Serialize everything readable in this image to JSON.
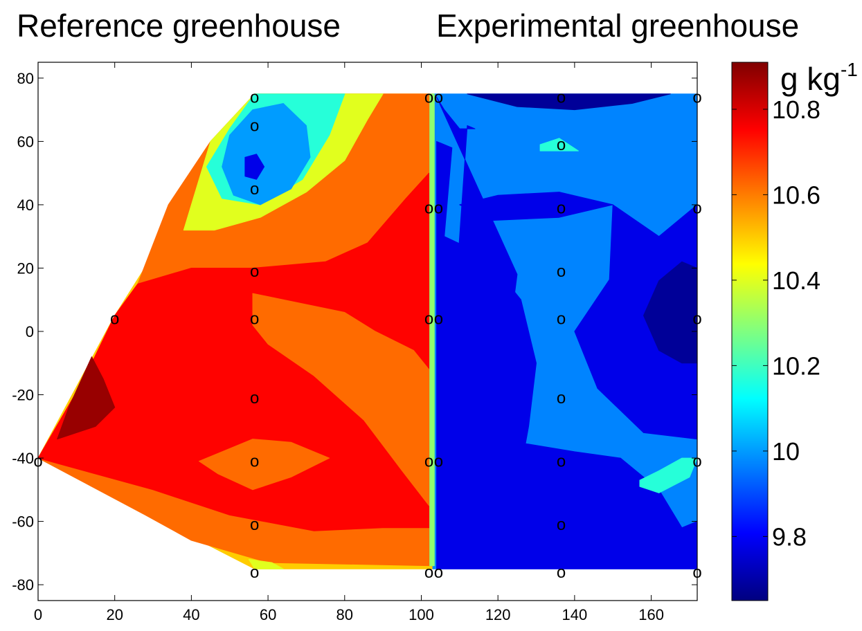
{
  "chart_data": {
    "type": "heatmap",
    "titles": {
      "left": "Reference greenhouse",
      "right": "Experimental greenhouse"
    },
    "xlim": [
      0,
      172
    ],
    "ylim": [
      -85,
      85
    ],
    "x_ticks": [
      0,
      20,
      40,
      60,
      80,
      100,
      120,
      140,
      160
    ],
    "y_ticks": [
      80,
      60,
      40,
      20,
      0,
      -20,
      -40,
      -60,
      -80
    ],
    "colorbar": {
      "label": "g kg",
      "label_superscript": "-1",
      "range": [
        9.65,
        10.91
      ],
      "ticks": [
        10.8,
        10.6,
        10.4,
        10.2,
        10,
        9.8
      ],
      "tick_labels": [
        "10.8",
        "10.6",
        "10.4",
        "10.2",
        "10",
        "9.8"
      ],
      "colormap": "jet"
    },
    "domains": {
      "reference_outline": [
        [
          56.5,
          75
        ],
        [
          102,
          75
        ],
        [
          102,
          -75
        ],
        [
          56.5,
          -75
        ],
        [
          0,
          -40
        ],
        [
          20,
          5
        ]
      ],
      "experimental_outline": [
        [
          102,
          75
        ],
        [
          172,
          75
        ],
        [
          172,
          -75
        ],
        [
          102,
          -75
        ]
      ]
    },
    "regions": [
      {
        "name": "ref-base",
        "value": 10.5,
        "points": [
          [
            56.5,
            75
          ],
          [
            103,
            75
          ],
          [
            103,
            -75
          ],
          [
            56.5,
            -75
          ],
          [
            0,
            -40
          ],
          [
            20,
            5
          ]
        ]
      },
      {
        "name": "ref-orange-top",
        "value": 10.62,
        "points": [
          [
            34,
            40
          ],
          [
            45,
            60
          ],
          [
            56.5,
            75
          ],
          [
            103,
            75
          ],
          [
            103,
            -74
          ],
          [
            60,
            -73
          ],
          [
            40,
            -66
          ],
          [
            28,
            -58
          ],
          [
            0,
            -40
          ],
          [
            12,
            -15
          ],
          [
            20,
            5
          ],
          [
            26,
            15
          ]
        ]
      },
      {
        "name": "ref-red",
        "value": 10.75,
        "points": [
          [
            26,
            15
          ],
          [
            40,
            20
          ],
          [
            56,
            20
          ],
          [
            75,
            22
          ],
          [
            86,
            28
          ],
          [
            96,
            42
          ],
          [
            102,
            50
          ],
          [
            102,
            -62
          ],
          [
            90,
            -62
          ],
          [
            72,
            -63
          ],
          [
            50,
            -58
          ],
          [
            30,
            -50
          ],
          [
            0,
            -40
          ],
          [
            12,
            -15
          ],
          [
            20,
            5
          ]
        ]
      },
      {
        "name": "ref-orange-mid",
        "value": 10.62,
        "points": [
          [
            56,
            12
          ],
          [
            64,
            10
          ],
          [
            80,
            6
          ],
          [
            88,
            0
          ],
          [
            98,
            -6
          ],
          [
            102,
            -12
          ],
          [
            102,
            -55
          ],
          [
            95,
            -44
          ],
          [
            85,
            -28
          ],
          [
            72,
            -14
          ],
          [
            60,
            -4
          ],
          [
            56,
            2
          ]
        ]
      },
      {
        "name": "ref-orange-oval",
        "value": 10.62,
        "points": [
          [
            42,
            -41
          ],
          [
            56,
            -34
          ],
          [
            66,
            -35
          ],
          [
            76,
            -40
          ],
          [
            66,
            -46
          ],
          [
            56,
            -50
          ],
          [
            47,
            -45
          ]
        ]
      },
      {
        "name": "ref-darkred-corner",
        "value": 10.88,
        "points": [
          [
            14,
            -8
          ],
          [
            17,
            -15
          ],
          [
            20,
            -24
          ],
          [
            15,
            -30
          ],
          [
            5,
            -34
          ],
          [
            8,
            -24
          ]
        ]
      },
      {
        "name": "ref-yellow-top",
        "value": 10.4,
        "points": [
          [
            45,
            60
          ],
          [
            56.5,
            75
          ],
          [
            90,
            75
          ],
          [
            86,
            67
          ],
          [
            80,
            54
          ],
          [
            70,
            44
          ],
          [
            58,
            36
          ],
          [
            46,
            32
          ],
          [
            38,
            32
          ]
        ]
      },
      {
        "name": "ref-cyan-top",
        "value": 10.17,
        "points": [
          [
            50,
            64
          ],
          [
            56.5,
            75
          ],
          [
            80,
            75
          ],
          [
            76,
            62
          ],
          [
            69,
            48
          ],
          [
            58,
            40
          ],
          [
            48,
            42
          ],
          [
            44,
            52
          ]
        ]
      },
      {
        "name": "ref-blue-top",
        "value": 10.0,
        "points": [
          [
            50,
            62
          ],
          [
            56,
            70
          ],
          [
            64,
            72
          ],
          [
            70,
            65
          ],
          [
            71,
            55
          ],
          [
            66,
            45
          ],
          [
            58,
            40
          ],
          [
            51,
            43
          ],
          [
            48,
            52
          ]
        ]
      },
      {
        "name": "ref-navy-spot",
        "value": 9.78,
        "points": [
          [
            54,
            55
          ],
          [
            57,
            56
          ],
          [
            59,
            52
          ],
          [
            57,
            48
          ],
          [
            54,
            49
          ]
        ]
      },
      {
        "name": "ref-yellow-bottom",
        "value": 10.4,
        "points": [
          [
            56.5,
            -75
          ],
          [
            64,
            -75
          ],
          [
            61,
            -73
          ],
          [
            55,
            -72
          ]
        ]
      },
      {
        "name": "exp-base",
        "value": 9.97,
        "points": [
          [
            103,
            75
          ],
          [
            172,
            75
          ],
          [
            172,
            -75
          ],
          [
            103,
            -75
          ]
        ]
      },
      {
        "name": "exp-navy-top",
        "value": 9.68,
        "points": [
          [
            112,
            75
          ],
          [
            165,
            75
          ],
          [
            155,
            72
          ],
          [
            140,
            70
          ],
          [
            125,
            71
          ]
        ]
      },
      {
        "name": "exp-cyan-spot",
        "value": 10.17,
        "points": [
          [
            131,
            59
          ],
          [
            136,
            61
          ],
          [
            141,
            57
          ],
          [
            131,
            57
          ]
        ]
      },
      {
        "name": "exp-blue-40",
        "value": 9.78,
        "points": [
          [
            110,
            40
          ],
          [
            120,
            43
          ],
          [
            136,
            44
          ],
          [
            150,
            40
          ],
          [
            136,
            36
          ],
          [
            118,
            35
          ]
        ]
      },
      {
        "name": "exp-blue-main",
        "value": 9.78,
        "points": [
          [
            104,
            74
          ],
          [
            106,
            70
          ],
          [
            110,
            64
          ],
          [
            114,
            64
          ],
          [
            112,
            65
          ],
          [
            104,
            -75
          ],
          [
            172,
            -75
          ],
          [
            172,
            -34
          ],
          [
            158,
            -32
          ],
          [
            146,
            -18
          ],
          [
            140,
            0
          ],
          [
            150,
            18
          ],
          [
            162,
            30
          ],
          [
            172,
            40
          ],
          [
            172,
            -60
          ],
          [
            168,
            -62
          ],
          [
            162,
            -50
          ],
          [
            152,
            -40
          ],
          [
            140,
            -38
          ],
          [
            125,
            -35
          ],
          [
            122,
            -10
          ],
          [
            125,
            18
          ]
        ]
      },
      {
        "name": "exp-blue-left-strip",
        "value": 9.78,
        "points": [
          [
            104,
            60
          ],
          [
            108,
            58
          ],
          [
            106,
            30
          ],
          [
            113,
            26
          ],
          [
            118,
            22
          ],
          [
            126,
            10
          ],
          [
            130,
            -10
          ],
          [
            128,
            -30
          ],
          [
            125,
            -50
          ],
          [
            126,
            -60
          ],
          [
            120,
            -74
          ],
          [
            104,
            -75
          ]
        ]
      },
      {
        "name": "exp-blue-right",
        "value": 9.78,
        "points": [
          [
            150,
            40
          ],
          [
            162,
            30
          ],
          [
            172,
            38
          ],
          [
            172,
            -22
          ],
          [
            162,
            -20
          ],
          [
            152,
            -12
          ],
          [
            147,
            0
          ],
          [
            149,
            14
          ]
        ]
      },
      {
        "name": "exp-navy-right",
        "value": 9.68,
        "points": [
          [
            158,
            5
          ],
          [
            162,
            16
          ],
          [
            168,
            22
          ],
          [
            172,
            20
          ],
          [
            172,
            -10
          ],
          [
            168,
            -10
          ],
          [
            162,
            -6
          ]
        ]
      },
      {
        "name": "exp-cyan-right",
        "value": 10.17,
        "points": [
          [
            157,
            -47
          ],
          [
            162,
            -44
          ],
          [
            168,
            -40
          ],
          [
            172,
            -40
          ],
          [
            170,
            -46
          ],
          [
            162,
            -51
          ],
          [
            157,
            -49
          ]
        ]
      },
      {
        "name": "interface-strip",
        "value": 10.3,
        "points": [
          [
            102.2,
            75
          ],
          [
            103.4,
            75
          ],
          [
            103.4,
            -74
          ],
          [
            102.2,
            -74
          ]
        ]
      }
    ],
    "measurement_points": [
      [
        56.5,
        74
      ],
      [
        56.5,
        65
      ],
      [
        56.5,
        45
      ],
      [
        56.5,
        19
      ],
      [
        56.5,
        4
      ],
      [
        56.5,
        -21
      ],
      [
        56.5,
        -41
      ],
      [
        56.5,
        -61
      ],
      [
        56.5,
        -76
      ],
      [
        20,
        4
      ],
      [
        0,
        -41
      ],
      [
        102,
        74
      ],
      [
        102,
        39
      ],
      [
        102,
        4
      ],
      [
        102,
        -41
      ],
      [
        102,
        -76
      ],
      [
        104.5,
        74
      ],
      [
        104.5,
        39
      ],
      [
        104.5,
        4
      ],
      [
        104.5,
        -41
      ],
      [
        104.5,
        -76
      ],
      [
        136.5,
        74
      ],
      [
        136.5,
        59
      ],
      [
        136.5,
        39
      ],
      [
        136.5,
        19
      ],
      [
        136.5,
        4
      ],
      [
        136.5,
        -21
      ],
      [
        136.5,
        -41
      ],
      [
        136.5,
        -61
      ],
      [
        136.5,
        -76
      ],
      [
        172,
        74
      ],
      [
        172,
        39
      ],
      [
        172,
        4
      ],
      [
        172,
        -41
      ],
      [
        172,
        -76
      ]
    ],
    "marker_label": "o"
  }
}
